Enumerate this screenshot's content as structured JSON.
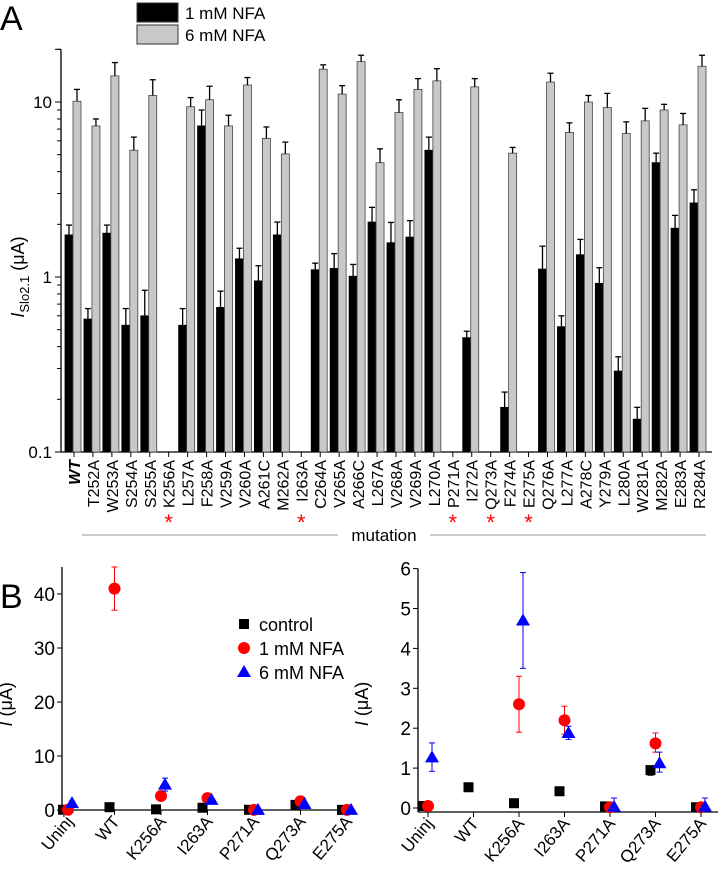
{
  "panel_labels": {
    "a": "A",
    "b": "B"
  },
  "colors": {
    "black_bar": "#000000",
    "gray_bar": "#c8c8c8",
    "control": "#000000",
    "nfa1": "#ff0000",
    "nfa6": "#0000ff",
    "star": "#ff0000"
  },
  "chart_data": [
    {
      "type": "bar",
      "panel": "A",
      "ylabel": {
        "italic": "I",
        "sub": "Slo2.1",
        "unit": " (μA)"
      },
      "xlabel": "mutation",
      "yscale": "log",
      "ylim": [
        0.1,
        20
      ],
      "yticks": [
        0.1,
        1,
        10
      ],
      "yticklabels": [
        "0.1",
        "1",
        "10"
      ],
      "legend": {
        "placement": "top-left",
        "entries": [
          "1 mM NFA",
          "6 mM NFA"
        ]
      },
      "categories": [
        "WT",
        "T252A",
        "W253A",
        "S254A",
        "S255A",
        "K256A",
        "L257A",
        "F258A",
        "V259A",
        "V260A",
        "A261C",
        "M262A",
        "I263A",
        "C264A",
        "V265A",
        "A266C",
        "L267A",
        "V268A",
        "V269A",
        "L270A",
        "P271A",
        "I272A",
        "Q273A",
        "F274A",
        "E275A",
        "Q276A",
        "L277A",
        "A278C",
        "Y279A",
        "L280A",
        "W281A",
        "M282A",
        "E283A",
        "R284A"
      ],
      "starred": [
        "K256A",
        "I263A",
        "P271A",
        "Q273A",
        "E275A"
      ],
      "series": [
        {
          "name": "1 mM NFA",
          "values": [
            1.74,
            0.575,
            1.78,
            0.53,
            0.6,
            null,
            0.53,
            7.3,
            0.67,
            1.27,
            0.95,
            1.74,
            null,
            1.1,
            1.12,
            1.01,
            2.06,
            1.57,
            1.69,
            5.3,
            null,
            0.45,
            null,
            0.18,
            null,
            1.11,
            0.52,
            1.34,
            0.92,
            0.29,
            0.154,
            4.5,
            1.9,
            2.65
          ],
          "err_upper": [
            1.98,
            0.66,
            1.98,
            0.66,
            0.84,
            null,
            0.66,
            9.0,
            0.83,
            1.46,
            1.16,
            2.06,
            null,
            1.2,
            1.36,
            1.18,
            2.5,
            2.05,
            2.1,
            6.3,
            null,
            0.49,
            null,
            0.22,
            null,
            1.5,
            0.6,
            1.64,
            1.13,
            0.35,
            0.18,
            5.1,
            2.25,
            3.15
          ]
        },
        {
          "name": "6 mM NFA",
          "values": [
            10.1,
            7.3,
            14.1,
            5.3,
            10.9,
            null,
            9.4,
            10.3,
            7.3,
            12.5,
            6.2,
            5.05,
            null,
            15.4,
            11.1,
            17.0,
            4.5,
            8.7,
            11.8,
            13.2,
            null,
            12.2,
            null,
            5.1,
            null,
            13.0,
            6.7,
            10.0,
            9.3,
            6.6,
            7.8,
            9.0,
            7.4,
            16.0
          ],
          "err_upper": [
            11.8,
            8.0,
            16.8,
            6.3,
            13.4,
            null,
            10.6,
            12.3,
            8.4,
            13.8,
            7.2,
            5.9,
            null,
            16.3,
            12.4,
            18.5,
            5.4,
            10.3,
            13.6,
            15.5,
            null,
            13.6,
            null,
            5.5,
            null,
            14.6,
            7.6,
            10.9,
            11.2,
            7.7,
            9.2,
            9.7,
            8.6,
            18.5
          ]
        }
      ]
    },
    {
      "type": "scatter",
      "panel": "B-left",
      "ylabel": {
        "italic": "I",
        "unit": " (μA)"
      },
      "ylim": [
        0,
        45
      ],
      "yticks": [
        0,
        10,
        20,
        30,
        40
      ],
      "yticklabels": [
        "0",
        "10",
        "20",
        "30",
        "40"
      ],
      "legend": {
        "placement": "top-right",
        "entries": [
          "control",
          "1 mM NFA",
          "6 mM NFA"
        ]
      },
      "categories": [
        "Uninj",
        "WT",
        "K256A",
        "I263A",
        "P271A",
        "Q273A",
        "E275A"
      ],
      "series": [
        {
          "name": "control",
          "marker": "square",
          "values": [
            0.05,
            0.52,
            0.12,
            0.42,
            0.04,
            0.95,
            0.02
          ],
          "err": [
            null,
            null,
            null,
            null,
            null,
            [
              0.82,
              1.05
            ],
            null
          ]
        },
        {
          "name": "1 mM NFA",
          "marker": "circle",
          "values": [
            0.05,
            41,
            2.6,
            2.2,
            0.02,
            1.62,
            0.02
          ],
          "err": [
            null,
            [
              37,
              45
            ],
            [
              1.9,
              3.3
            ],
            [
              1.85,
              2.55
            ],
            null,
            [
              1.4,
              1.88
            ],
            null
          ]
        },
        {
          "name": "6 mM NFA",
          "marker": "triangle",
          "values": [
            1.27,
            null,
            4.7,
            1.88,
            0.03,
            1.12,
            0.03
          ],
          "err": [
            [
              0.92,
              1.63
            ],
            null,
            [
              3.5,
              5.9
            ],
            [
              1.72,
              2.05
            ],
            [
              0,
              0.25
            ],
            [
              0.9,
              1.4
            ],
            [
              0,
              0.25
            ]
          ]
        }
      ]
    },
    {
      "type": "scatter",
      "panel": "B-right",
      "ylabel": {
        "italic": "I",
        "unit": " (μA)"
      },
      "ylim": [
        -0.1,
        6
      ],
      "yticks": [
        0,
        1,
        2,
        3,
        4,
        5,
        6
      ],
      "yticklabels": [
        "0",
        "1",
        "2",
        "3",
        "4",
        "5",
        "6"
      ],
      "categories": [
        "Uninj",
        "WT",
        "K256A",
        "I263A",
        "P271A",
        "Q273A",
        "E275A"
      ],
      "series": [
        {
          "name": "control",
          "marker": "square",
          "values": [
            0.05,
            0.52,
            0.12,
            0.42,
            0.04,
            0.95,
            0.02
          ],
          "err": [
            null,
            null,
            null,
            null,
            null,
            [
              0.82,
              1.05
            ],
            null
          ]
        },
        {
          "name": "1 mM NFA",
          "marker": "circle",
          "values": [
            0.05,
            null,
            2.6,
            2.2,
            0.02,
            1.62,
            0.02
          ],
          "err": [
            null,
            null,
            [
              1.9,
              3.3
            ],
            [
              1.85,
              2.55
            ],
            null,
            [
              1.4,
              1.88
            ],
            null
          ]
        },
        {
          "name": "6 mM NFA",
          "marker": "triangle",
          "values": [
            1.27,
            null,
            4.7,
            1.88,
            0.03,
            1.12,
            0.03
          ],
          "err": [
            [
              0.92,
              1.63
            ],
            null,
            [
              3.5,
              5.9
            ],
            [
              1.72,
              2.05
            ],
            [
              0,
              0.25
            ],
            [
              0.9,
              1.4
            ],
            [
              0,
              0.25
            ]
          ]
        }
      ]
    }
  ]
}
